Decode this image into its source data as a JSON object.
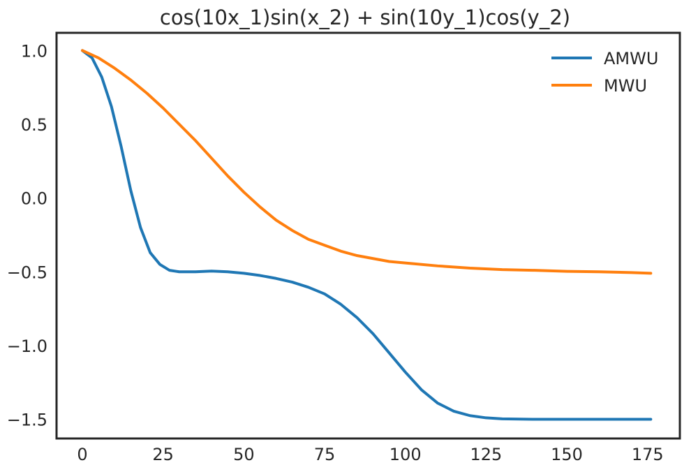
{
  "chart_data": {
    "type": "line",
    "title": "cos(10x_1)sin(x_2) + sin(10y_1)cos(y_2)",
    "xlabel": "",
    "ylabel": "",
    "xlim": [
      -8,
      185
    ],
    "ylim": [
      -1.63,
      1.12
    ],
    "grid": false,
    "legend_position": "top-right",
    "xticks": [
      0,
      25,
      50,
      75,
      100,
      125,
      150,
      175
    ],
    "xtick_labels": [
      "0",
      "25",
      "50",
      "75",
      "100",
      "125",
      "150",
      "175"
    ],
    "yticks": [
      1.0,
      0.5,
      0.0,
      -0.5,
      -1.0,
      -1.5
    ],
    "ytick_labels": [
      "1.0",
      "0.5",
      "0.0",
      "−0.5",
      "−1.0",
      "−1.5"
    ],
    "series": [
      {
        "name": "AMWU",
        "color": "#1f77b4",
        "points": [
          [
            0,
            1.0
          ],
          [
            3,
            0.95
          ],
          [
            6,
            0.82
          ],
          [
            9,
            0.62
          ],
          [
            12,
            0.35
          ],
          [
            15,
            0.05
          ],
          [
            18,
            -0.2
          ],
          [
            21,
            -0.37
          ],
          [
            24,
            -0.45
          ],
          [
            27,
            -0.49
          ],
          [
            30,
            -0.5
          ],
          [
            35,
            -0.5
          ],
          [
            40,
            -0.495
          ],
          [
            45,
            -0.5
          ],
          [
            50,
            -0.51
          ],
          [
            55,
            -0.525
          ],
          [
            60,
            -0.545
          ],
          [
            65,
            -0.57
          ],
          [
            70,
            -0.605
          ],
          [
            75,
            -0.65
          ],
          [
            80,
            -0.72
          ],
          [
            85,
            -0.81
          ],
          [
            90,
            -0.92
          ],
          [
            95,
            -1.05
          ],
          [
            100,
            -1.18
          ],
          [
            105,
            -1.3
          ],
          [
            110,
            -1.39
          ],
          [
            115,
            -1.445
          ],
          [
            120,
            -1.475
          ],
          [
            125,
            -1.49
          ],
          [
            130,
            -1.497
          ],
          [
            140,
            -1.5
          ],
          [
            150,
            -1.5
          ],
          [
            160,
            -1.5
          ],
          [
            170,
            -1.5
          ],
          [
            176,
            -1.5
          ]
        ]
      },
      {
        "name": "MWU",
        "color": "#ff7f0e",
        "points": [
          [
            0,
            1.0
          ],
          [
            5,
            0.95
          ],
          [
            10,
            0.88
          ],
          [
            15,
            0.8
          ],
          [
            20,
            0.71
          ],
          [
            25,
            0.61
          ],
          [
            30,
            0.5
          ],
          [
            35,
            0.39
          ],
          [
            40,
            0.27
          ],
          [
            45,
            0.15
          ],
          [
            50,
            0.04
          ],
          [
            55,
            -0.06
          ],
          [
            60,
            -0.15
          ],
          [
            65,
            -0.22
          ],
          [
            70,
            -0.28
          ],
          [
            75,
            -0.32
          ],
          [
            80,
            -0.36
          ],
          [
            85,
            -0.39
          ],
          [
            90,
            -0.41
          ],
          [
            95,
            -0.43
          ],
          [
            100,
            -0.44
          ],
          [
            110,
            -0.46
          ],
          [
            120,
            -0.475
          ],
          [
            130,
            -0.485
          ],
          [
            140,
            -0.49
          ],
          [
            150,
            -0.497
          ],
          [
            160,
            -0.5
          ],
          [
            170,
            -0.505
          ],
          [
            176,
            -0.51
          ]
        ]
      }
    ]
  }
}
